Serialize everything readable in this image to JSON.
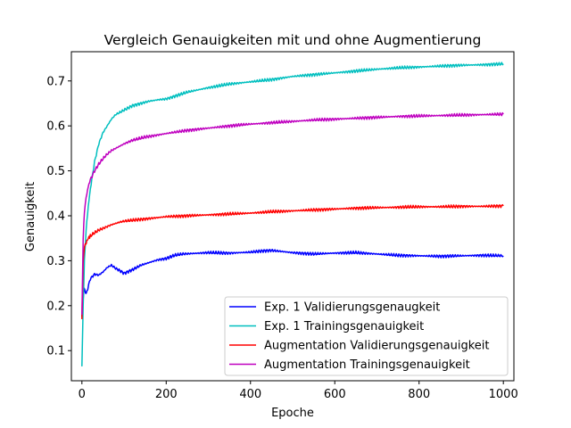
{
  "chart_data": {
    "type": "line",
    "title": "Vergleich Genauigkeiten mit und ohne Augmentierung",
    "xlabel": "Epoche",
    "ylabel": "Genauigkeit",
    "xlim": [
      -25,
      1025
    ],
    "ylim": [
      0.033,
      0.765
    ],
    "xticks": [
      0,
      200,
      400,
      600,
      800,
      1000
    ],
    "xtick_labels": [
      "0",
      "200",
      "400",
      "600",
      "800",
      "1000"
    ],
    "yticks": [
      0.1,
      0.2,
      0.3,
      0.4,
      0.5,
      0.6,
      0.7
    ],
    "ytick_labels": [
      "0.1",
      "0.2",
      "0.3",
      "0.4",
      "0.5",
      "0.6",
      "0.7"
    ],
    "grid": false,
    "legend_position": "lower-right",
    "series": [
      {
        "name": "Exp. 1 Validierungsgenaugkeit",
        "color": "#0000ff",
        "x": [
          0,
          5,
          10,
          20,
          30,
          40,
          50,
          60,
          70,
          80,
          90,
          100,
          120,
          140,
          160,
          180,
          200,
          220,
          240,
          260,
          300,
          350,
          400,
          430,
          450,
          470,
          500,
          550,
          600,
          650,
          700,
          750,
          800,
          850,
          900,
          950,
          1000
        ],
        "values": [
          0.175,
          0.24,
          0.225,
          0.26,
          0.27,
          0.268,
          0.275,
          0.285,
          0.29,
          0.283,
          0.278,
          0.272,
          0.28,
          0.29,
          0.296,
          0.302,
          0.305,
          0.312,
          0.315,
          0.316,
          0.318,
          0.317,
          0.319,
          0.322,
          0.323,
          0.321,
          0.318,
          0.315,
          0.317,
          0.318,
          0.315,
          0.312,
          0.311,
          0.31,
          0.311,
          0.312,
          0.311
        ]
      },
      {
        "name": "Exp. 1 Trainingsgenauigkeit",
        "color": "#00bfbf",
        "x": [
          0,
          3,
          6,
          10,
          15,
          20,
          30,
          40,
          50,
          60,
          70,
          80,
          90,
          100,
          120,
          140,
          160,
          180,
          200,
          250,
          300,
          350,
          400,
          450,
          500,
          550,
          600,
          650,
          700,
          750,
          800,
          850,
          900,
          950,
          1000
        ],
        "values": [
          0.065,
          0.2,
          0.3,
          0.37,
          0.42,
          0.46,
          0.52,
          0.56,
          0.585,
          0.6,
          0.615,
          0.625,
          0.63,
          0.635,
          0.645,
          0.65,
          0.655,
          0.658,
          0.66,
          0.675,
          0.685,
          0.693,
          0.698,
          0.703,
          0.71,
          0.714,
          0.718,
          0.722,
          0.726,
          0.729,
          0.731,
          0.733,
          0.735,
          0.736,
          0.738
        ]
      },
      {
        "name": "Augmentation Validierungsgenauigkeit",
        "color": "#ff0000",
        "x": [
          0,
          3,
          6,
          10,
          15,
          20,
          30,
          40,
          50,
          60,
          70,
          80,
          90,
          100,
          150,
          200,
          250,
          300,
          350,
          400,
          450,
          500,
          550,
          600,
          650,
          700,
          750,
          800,
          850,
          900,
          950,
          1000
        ],
        "values": [
          0.17,
          0.3,
          0.33,
          0.34,
          0.35,
          0.355,
          0.362,
          0.368,
          0.372,
          0.376,
          0.38,
          0.383,
          0.386,
          0.388,
          0.393,
          0.398,
          0.4,
          0.402,
          0.404,
          0.406,
          0.409,
          0.411,
          0.413,
          0.415,
          0.417,
          0.418,
          0.419,
          0.42,
          0.42,
          0.421,
          0.421,
          0.422
        ]
      },
      {
        "name": "Augmentation Trainingsgenauigkeit",
        "color": "#bf00bf",
        "x": [
          0,
          3,
          6,
          10,
          15,
          20,
          30,
          40,
          50,
          60,
          70,
          80,
          90,
          100,
          120,
          150,
          200,
          250,
          300,
          350,
          400,
          450,
          500,
          550,
          600,
          650,
          700,
          750,
          800,
          850,
          900,
          950,
          1000
        ],
        "values": [
          0.18,
          0.35,
          0.41,
          0.44,
          0.465,
          0.48,
          0.5,
          0.515,
          0.527,
          0.537,
          0.545,
          0.55,
          0.555,
          0.56,
          0.568,
          0.575,
          0.583,
          0.59,
          0.595,
          0.6,
          0.604,
          0.607,
          0.61,
          0.613,
          0.615,
          0.617,
          0.619,
          0.621,
          0.622,
          0.623,
          0.624,
          0.625,
          0.626
        ]
      }
    ]
  }
}
